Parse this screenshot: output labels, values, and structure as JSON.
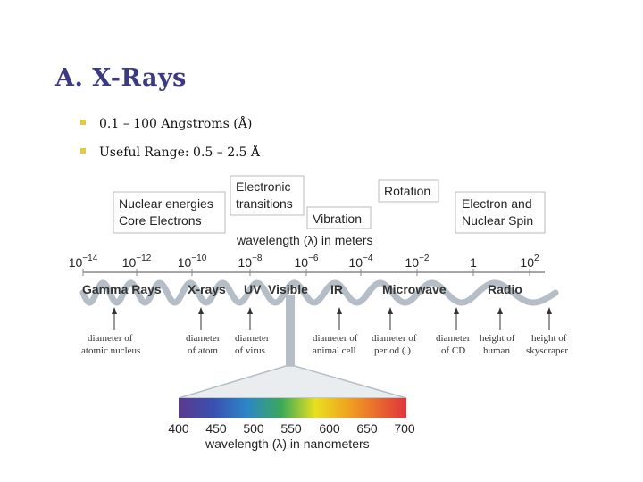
{
  "title": "A. X-Rays",
  "bullets": [
    "0.1 – 100 Angstroms (Å)",
    "Useful Range: 0.5 – 2.5 Å"
  ],
  "figure": {
    "boxes": {
      "nuclear": [
        "Nuclear energies",
        "Core Electrons"
      ],
      "electronic": [
        "Electronic",
        "transitions"
      ],
      "vibration": "Vibration",
      "rotation": "Rotation",
      "spin": [
        "Electron and",
        "Nuclear Spin"
      ]
    },
    "axis_title_meters": "wavelength (λ) in meters",
    "ticks_meters": [
      {
        "base": "10",
        "exp": "−14"
      },
      {
        "base": "10",
        "exp": "−12"
      },
      {
        "base": "10",
        "exp": "−10"
      },
      {
        "base": "10",
        "exp": "−8"
      },
      {
        "base": "10",
        "exp": "−6"
      },
      {
        "base": "10",
        "exp": "−4"
      },
      {
        "base": "10",
        "exp": "−2"
      },
      {
        "base": "1",
        "exp": ""
      },
      {
        "base": "10",
        "exp": "2"
      }
    ],
    "bands": [
      "Gamma Rays",
      "X-rays",
      "UV",
      "Visible",
      "IR",
      "Microwave",
      "Radio"
    ],
    "notes": [
      [
        "diameter of",
        "atomic nucleus"
      ],
      [
        "diameter",
        "of atom"
      ],
      [
        "diameter",
        "of virus"
      ],
      [
        "diameter of",
        "animal cell"
      ],
      [
        "diameter of",
        "period (.)"
      ],
      [
        "diameter",
        "of CD"
      ],
      [
        "height of",
        "human"
      ],
      [
        "height of",
        "skyscraper"
      ]
    ],
    "spectrum_ticks": [
      "400",
      "450",
      "500",
      "550",
      "600",
      "650",
      "700"
    ],
    "axis_title_nm": "wavelength (λ) in nanometers"
  }
}
